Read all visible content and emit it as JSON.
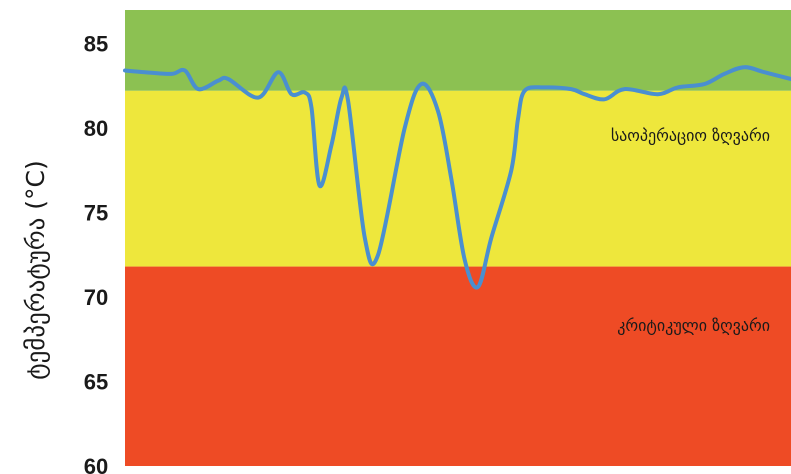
{
  "chart_data": {
    "type": "line",
    "ylabel": "ტემპერატურა (°C)",
    "ylim": [
      60,
      87
    ],
    "y_ticks": [
      "60",
      "65",
      "70",
      "75",
      "80",
      "85"
    ],
    "bands": [
      {
        "label": "",
        "from": 82.2,
        "to": 87,
        "color": "#8cc152"
      },
      {
        "label": "საოპერაციო ზღვარი",
        "from": 71.8,
        "to": 82.2,
        "color": "#eee73c"
      },
      {
        "label": "კრიტიკული ზღვარი",
        "from": 60,
        "to": 71.8,
        "color": "#ee4b25"
      }
    ],
    "series": [
      {
        "color": "#4a8fd0",
        "points": [
          [
            0,
            83.4
          ],
          [
            0.03,
            83.3
          ],
          [
            0.07,
            83.2
          ],
          [
            0.09,
            83.4
          ],
          [
            0.11,
            82.3
          ],
          [
            0.14,
            82.8
          ],
          [
            0.155,
            82.9
          ],
          [
            0.2,
            81.8
          ],
          [
            0.23,
            83.3
          ],
          [
            0.25,
            82.0
          ],
          [
            0.27,
            82.1
          ],
          [
            0.28,
            81.2
          ],
          [
            0.292,
            76.6
          ],
          [
            0.31,
            79.0
          ],
          [
            0.325,
            81.8
          ],
          [
            0.335,
            81.6
          ],
          [
            0.36,
            73.5
          ],
          [
            0.38,
            72.5
          ],
          [
            0.42,
            80.0
          ],
          [
            0.445,
            82.6
          ],
          [
            0.47,
            81.0
          ],
          [
            0.49,
            77.0
          ],
          [
            0.51,
            72.2
          ],
          [
            0.53,
            70.6
          ],
          [
            0.55,
            73.5
          ],
          [
            0.58,
            77.5
          ],
          [
            0.59,
            80.5
          ],
          [
            0.6,
            82.2
          ],
          [
            0.63,
            82.4
          ],
          [
            0.67,
            82.3
          ],
          [
            0.69,
            82.0
          ],
          [
            0.72,
            81.7
          ],
          [
            0.75,
            82.3
          ],
          [
            0.8,
            82.0
          ],
          [
            0.83,
            82.4
          ],
          [
            0.87,
            82.6
          ],
          [
            0.9,
            83.2
          ],
          [
            0.93,
            83.6
          ],
          [
            0.96,
            83.3
          ],
          [
            1.0,
            82.9
          ]
        ]
      }
    ]
  }
}
